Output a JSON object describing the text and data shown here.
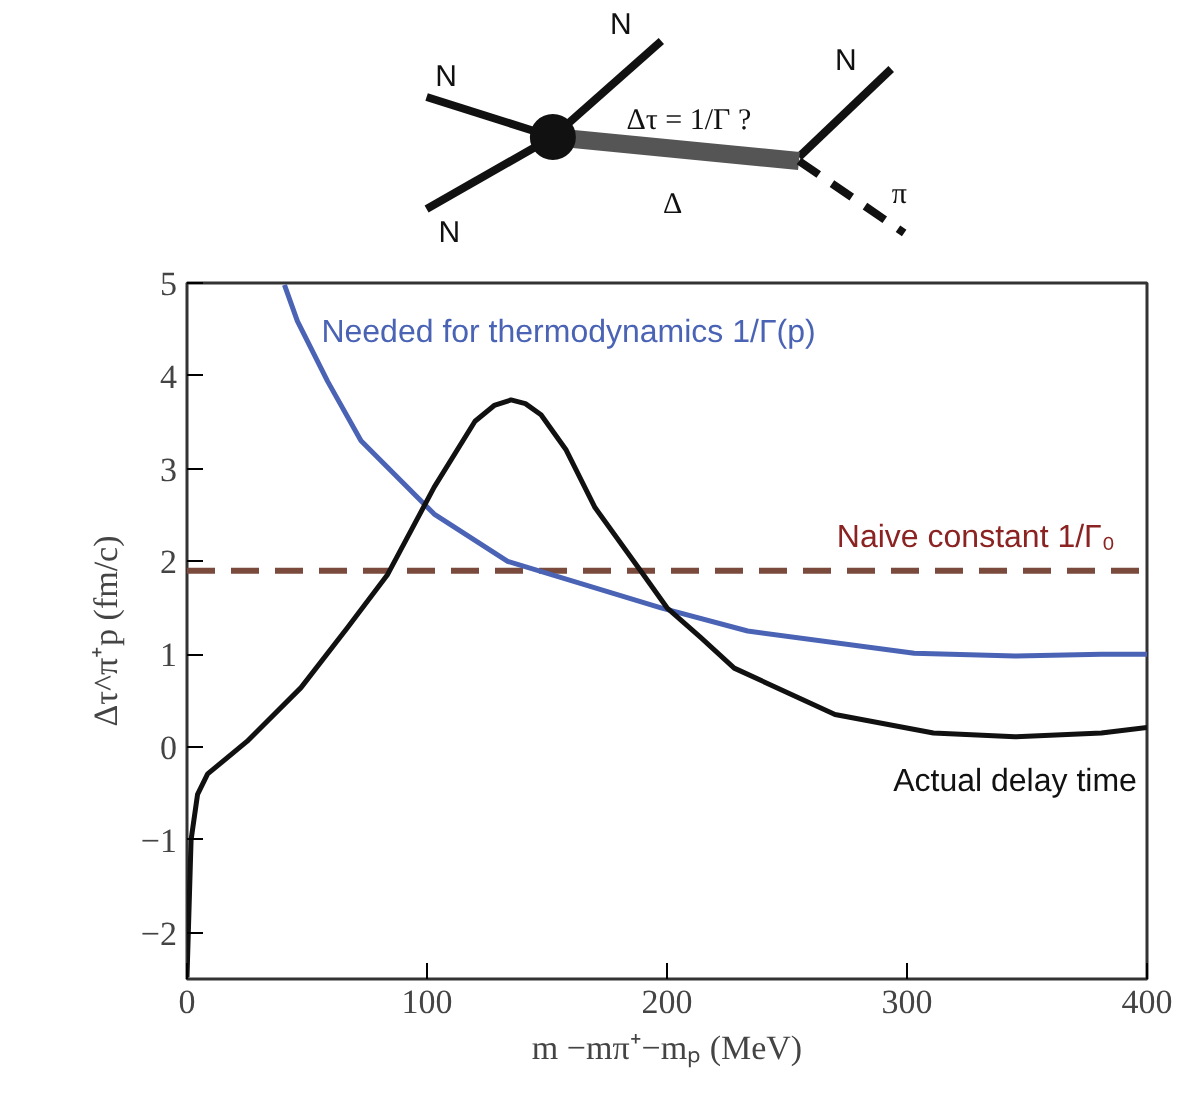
{
  "chart_data": {
    "type": "line",
    "xlabel": "m −mπ⁺−mₚ (MeV)",
    "ylabel": "Δτ^π⁺p (fm/c)",
    "xlim": [
      0,
      400
    ],
    "ylim": [
      -2.5,
      5
    ],
    "xticks": [
      0,
      100,
      200,
      300,
      400
    ],
    "yticks": [
      {
        "value": -2,
        "label": "−2"
      },
      {
        "value": -1,
        "label": "−1"
      },
      0,
      1,
      2,
      3,
      4,
      5
    ],
    "grid": false,
    "line_style": "solid",
    "marker": "none",
    "series": [
      {
        "name": "Needed for thermodynamics 1/Γ(p)",
        "color": "#4a63b5",
        "x": [
          40.6,
          46,
          58.6,
          72.5,
          103,
          133.6,
          197.5,
          233.6,
          303,
          345,
          381,
          400
        ],
        "values": [
          4.98,
          4.59,
          3.94,
          3.3,
          2.51,
          2.0,
          1.5,
          1.25,
          1.01,
          0.98,
          1.0,
          1.0
        ]
      },
      {
        "name": "Actual delay time",
        "color": "#111111",
        "x": [
          0,
          1.7,
          4.4,
          8.6,
          25,
          47.5,
          67,
          83.6,
          103,
          120,
          128,
          135,
          141,
          147.5,
          158,
          170,
          189,
          200,
          214,
          228,
          270,
          311,
          345,
          381,
          400
        ],
        "values": [
          -2.48,
          -1.0,
          -0.51,
          -0.29,
          0.06,
          0.64,
          1.29,
          1.86,
          2.8,
          3.51,
          3.68,
          3.74,
          3.7,
          3.58,
          3.2,
          2.58,
          1.9,
          1.5,
          1.18,
          0.85,
          0.35,
          0.15,
          0.11,
          0.15,
          0.21
        ]
      }
    ],
    "ref_lines": [
      {
        "axis": "y",
        "value": 1.9,
        "label": "Naive constant 1/Γ₀",
        "color": "#7a4a3c",
        "line_style": "dashed"
      }
    ],
    "annotations": [
      "N",
      "N",
      "N",
      "N",
      "Δτ = 1/Γ ?",
      "Δ",
      "π"
    ]
  }
}
